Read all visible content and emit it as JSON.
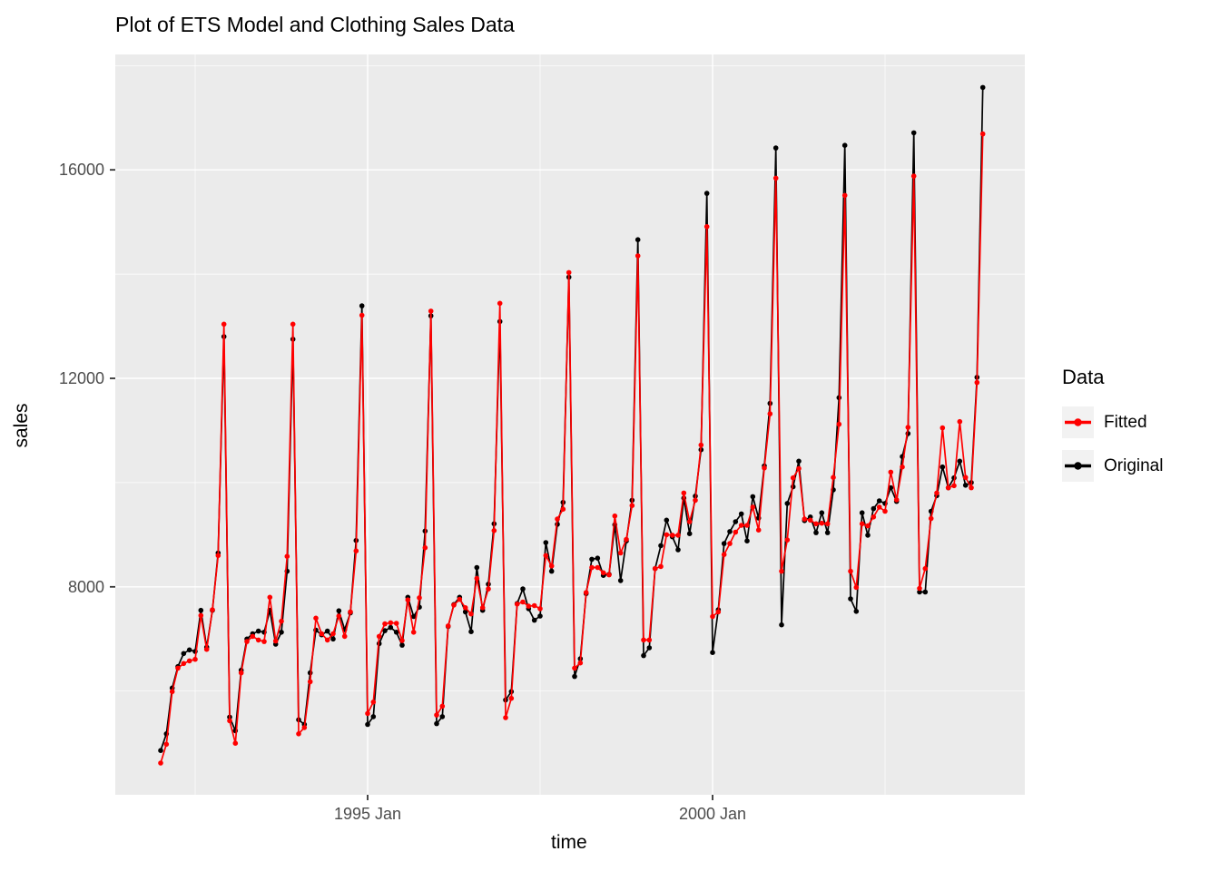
{
  "title": "Plot of ETS Model and Clothing Sales Data",
  "axes": {
    "x_label": "time",
    "y_label": "sales",
    "x_tick_labels": [
      "1995 Jan",
      "2000 Jan"
    ],
    "y_tick_labels": [
      "8000",
      "12000",
      "16000"
    ]
  },
  "legend": {
    "title": "Data",
    "entries": [
      {
        "label": "Fitted",
        "color": "#ff0000"
      },
      {
        "label": "Original",
        "color": "#000000"
      }
    ],
    "position": "right",
    "key_fill": "#f2f2f2"
  },
  "colors": {
    "panel_background": "#ebebeb",
    "gridline": "#ffffff",
    "tick_mark": "#333333",
    "tick_label": "#4d4d4d",
    "fitted": "#ff0000",
    "original": "#000000"
  },
  "chart_data": {
    "type": "line",
    "title": "Plot of ETS Model and Clothing Sales Data",
    "xlabel": "time",
    "ylabel": "sales",
    "frequency": "monthly",
    "x_start": "1992 Jan",
    "x_end": "2003 Dec",
    "n_points": 144,
    "grid": "on",
    "legend_position": "right",
    "y_ticks_major": [
      8000,
      12000,
      16000
    ],
    "y_ticks_minor": [
      6000,
      10000,
      14000,
      18000
    ],
    "x_ticks_major": [
      {
        "label": "1995 Jan",
        "month_index": 36
      },
      {
        "label": "2000 Jan",
        "month_index": 96
      }
    ],
    "x_minor_month_indices": [
      6,
      66,
      126
    ],
    "ylim_panel": [
      3990,
      18220
    ],
    "series": [
      {
        "name": "Fitted",
        "color": "#ff0000",
        "values": [
          4620,
          4980,
          5990,
          6440,
          6530,
          6580,
          6610,
          7450,
          6800,
          7560,
          8600,
          13040,
          5430,
          5000,
          6350,
          6950,
          7050,
          6980,
          6950,
          7800,
          6960,
          7340,
          8585,
          13040,
          5180,
          5300,
          6180,
          7400,
          7100,
          6980,
          7100,
          7440,
          7050,
          7520,
          8690,
          13210,
          5570,
          5790,
          7050,
          7290,
          7310,
          7300,
          6970,
          7750,
          7130,
          7790,
          8750,
          13290,
          5540,
          5710,
          7250,
          7650,
          7760,
          7600,
          7480,
          8160,
          7600,
          7960,
          9080,
          13440,
          5490,
          5860,
          7670,
          7710,
          7630,
          7640,
          7580,
          8600,
          8400,
          9300,
          9490,
          14030,
          6440,
          6540,
          7890,
          8370,
          8370,
          8270,
          8230,
          9360,
          8650,
          8910,
          9560,
          14350,
          6980,
          6980,
          8350,
          8390,
          9000,
          8990,
          8990,
          9800,
          9250,
          9660,
          10720,
          14910,
          7430,
          7520,
          8620,
          8830,
          9050,
          9180,
          9180,
          9530,
          9090,
          10280,
          11320,
          15840,
          8300,
          8900,
          10090,
          10270,
          9300,
          9280,
          9210,
          9220,
          9210,
          10100,
          11120,
          15510,
          8300,
          7990,
          9210,
          9170,
          9340,
          9530,
          9450,
          10200,
          9670,
          10300,
          11060,
          15880,
          7970,
          8350,
          9310,
          9800,
          11050,
          9900,
          9940,
          11170,
          10100,
          9900,
          11920,
          16690
        ]
      },
      {
        "name": "Original",
        "color": "#000000",
        "values": [
          4860,
          5180,
          6060,
          6470,
          6720,
          6790,
          6760,
          7550,
          6840,
          7550,
          8650,
          12800,
          5500,
          5240,
          6400,
          7000,
          7100,
          7150,
          7130,
          7550,
          6900,
          7130,
          8300,
          12750,
          5450,
          5360,
          6350,
          7170,
          7080,
          7150,
          7000,
          7540,
          7180,
          7500,
          8890,
          13390,
          5360,
          5510,
          6910,
          7160,
          7220,
          7130,
          6880,
          7800,
          7430,
          7610,
          9070,
          13200,
          5375,
          5510,
          7240,
          7660,
          7800,
          7520,
          7140,
          8370,
          7550,
          8050,
          9210,
          13090,
          5830,
          5990,
          7680,
          7960,
          7580,
          7360,
          7440,
          8850,
          8300,
          9200,
          9620,
          13940,
          6280,
          6620,
          7870,
          8530,
          8550,
          8220,
          8240,
          9190,
          8120,
          8880,
          9660,
          14660,
          6680,
          6830,
          8350,
          8790,
          9280,
          8960,
          8710,
          9700,
          9020,
          9740,
          10630,
          15550,
          6740,
          7560,
          8830,
          9060,
          9250,
          9400,
          8880,
          9730,
          9320,
          10320,
          11520,
          16420,
          7270,
          9600,
          9920,
          10410,
          9270,
          9340,
          9040,
          9420,
          9040,
          9860,
          11630,
          16470,
          7770,
          7530,
          9420,
          8990,
          9500,
          9650,
          9600,
          9900,
          9640,
          10500,
          10940,
          16710,
          7900,
          7900,
          9450,
          9750,
          10300,
          9900,
          10090,
          10410,
          9950,
          10000,
          12020,
          17580
        ]
      }
    ]
  }
}
